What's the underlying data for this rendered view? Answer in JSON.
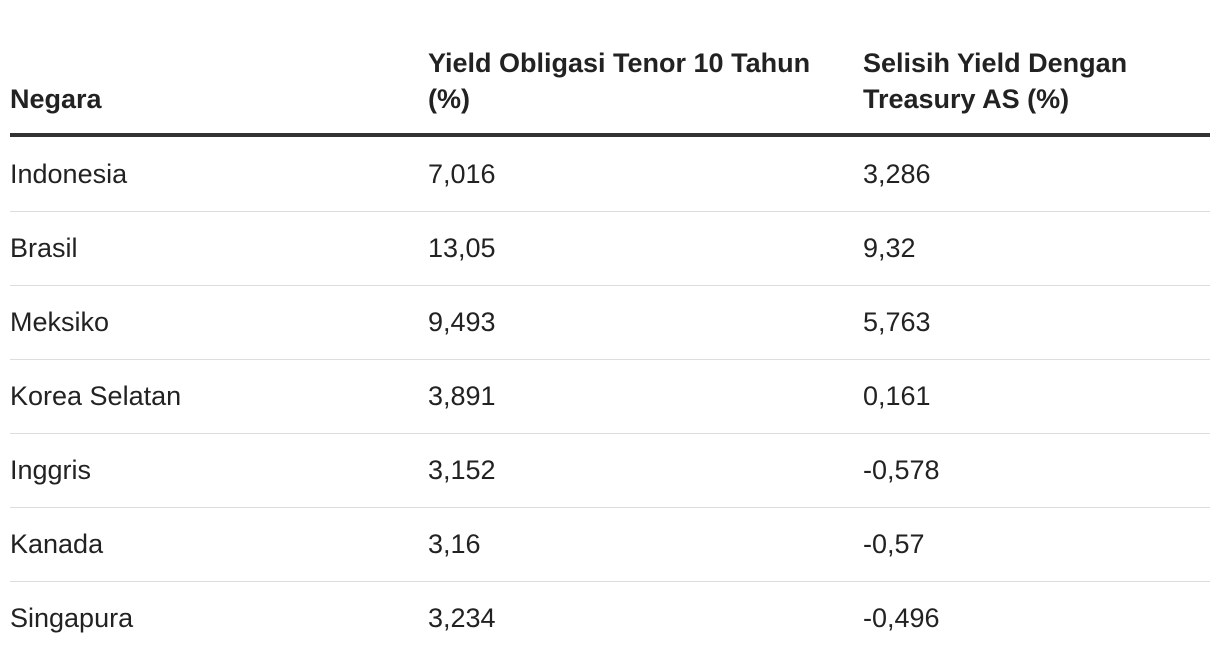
{
  "table": {
    "header": [
      "Negara",
      "Yield Obligasi Tenor 10 Tahun (%)",
      "Selisih Yield Dengan Treasury AS (%)"
    ],
    "rows": [
      [
        "Indonesia",
        "7,016",
        "3,286"
      ],
      [
        "Brasil",
        "13,05",
        "9,32"
      ],
      [
        "Meksiko",
        "9,493",
        "5,763"
      ],
      [
        "Korea Selatan",
        "3,891",
        "0,161"
      ],
      [
        "Inggris",
        "3,152",
        "-0,578"
      ],
      [
        "Kanada",
        "3,16",
        "-0,57"
      ],
      [
        "Singapura",
        "3,234",
        "-0,496"
      ]
    ]
  }
}
